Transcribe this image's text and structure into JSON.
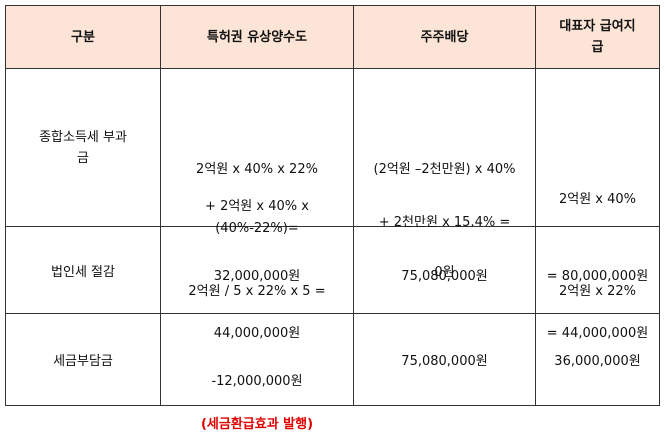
{
  "header": {
    "col1": "구분",
    "col2": "특허권 유상양수도",
    "col3": "주주배당",
    "col4_line1": "대표자 급여지",
    "col4_line2": "급"
  },
  "rows": [
    {
      "label_line1": "종합소득세 부과",
      "label_line2": "금",
      "patent": {
        "line1": "2억원 x 40% x 22%",
        "line2": "+ 2억원 x 40% x",
        "line3": "(40%-22%)=",
        "line4": "32,000,000원"
      },
      "dividend": {
        "line1": "(2억원 –2천만원) x 40%",
        "line2": "+ 2천만원 x 15.4% =",
        "line3": "75,080,000원"
      },
      "salary": {
        "line1": "2억원 x 40%",
        "line2": "= 80,000,000원"
      }
    },
    {
      "label": "법인세 절감",
      "patent": {
        "line1": "2억원 / 5 x 22% x 5 =",
        "line2": "44,000,000원"
      },
      "dividend": {
        "line1": "0원"
      },
      "salary": {
        "line1": "2억원 x 22%",
        "line2": "= 44,000,000원"
      }
    },
    {
      "label": "세금부담금",
      "patent": {
        "line1": "-12,000,000원",
        "line2": "(세금환급효과 발행)"
      },
      "dividend": {
        "line1": "75,080,000원"
      },
      "salary": {
        "line1": "36,000,000원"
      }
    }
  ],
  "colors": {
    "header_bg": "#fce4d6",
    "border": "#333333",
    "highlight_text": "#e00000"
  }
}
